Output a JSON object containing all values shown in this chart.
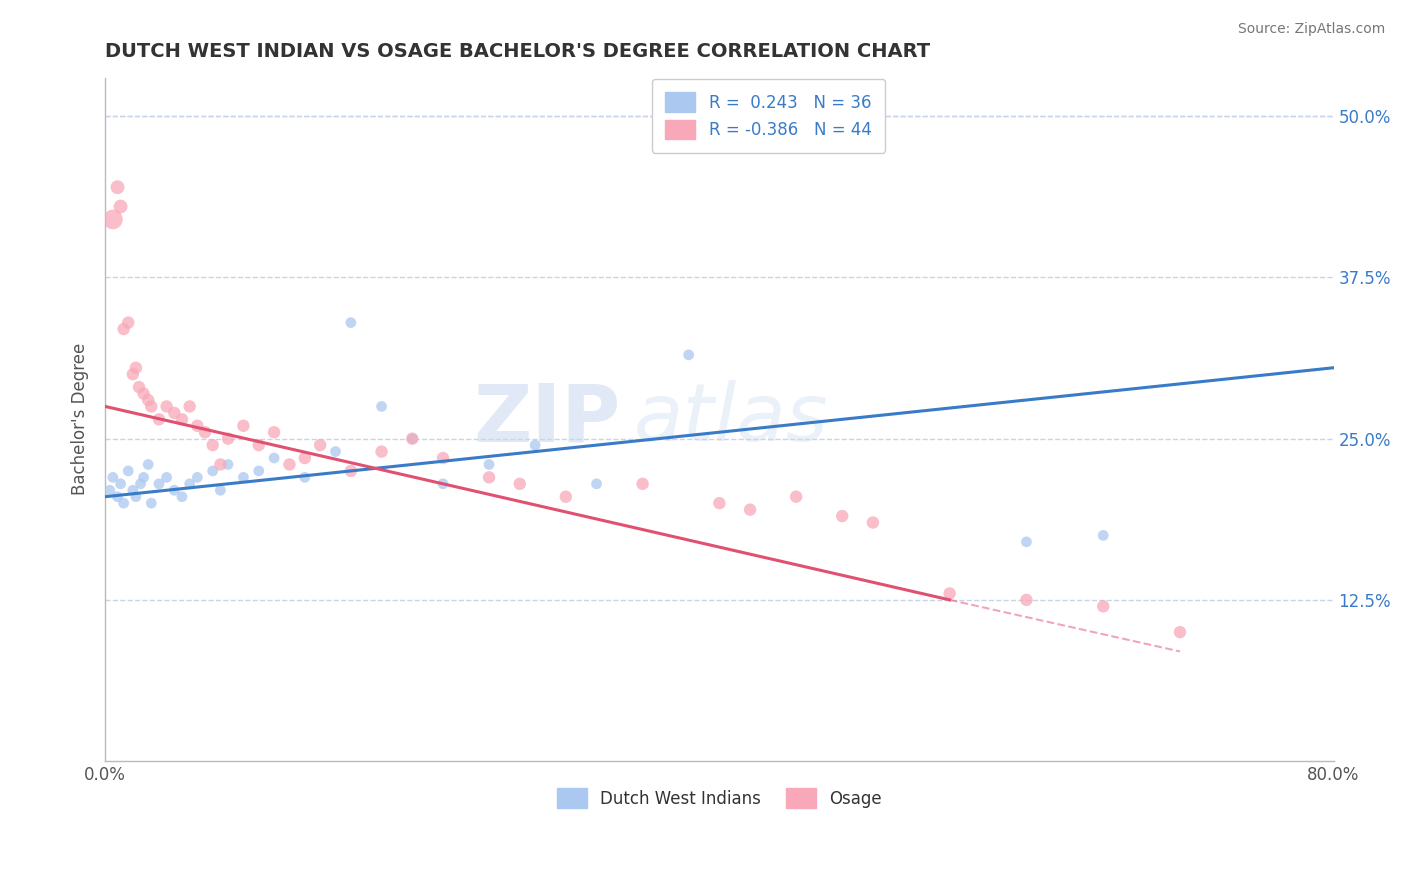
{
  "title": "DUTCH WEST INDIAN VS OSAGE BACHELOR'S DEGREE CORRELATION CHART",
  "source": "Source: ZipAtlas.com",
  "ylabel": "Bachelor's Degree",
  "x_min": 0.0,
  "x_max": 80.0,
  "y_min": 0.0,
  "y_max": 53.0,
  "legend_r_blue": "R =  0.243",
  "legend_n_blue": "N = 36",
  "legend_r_pink": "R = -0.386",
  "legend_n_pink": "N = 44",
  "blue_color": "#aac8f0",
  "pink_color": "#f8a8b8",
  "blue_line_color": "#3a7bc8",
  "pink_line_color": "#e05070",
  "watermark_zip": "ZIP",
  "watermark_atlas": "atlas",
  "background_color": "#ffffff",
  "grid_color": "#c8d4e8",
  "blue_line": {
    "x0": 0.0,
    "y0": 20.5,
    "x1": 80.0,
    "y1": 30.5
  },
  "pink_line": {
    "x0": 0.0,
    "y0": 27.5,
    "x1": 55.0,
    "y1": 12.5
  },
  "pink_line_dash": {
    "x0": 55.0,
    "y0": 12.5,
    "x1": 70.0,
    "y1": 8.5
  },
  "blue_scatter_x": [
    0.3,
    0.5,
    0.8,
    1.0,
    1.2,
    1.5,
    1.8,
    2.0,
    2.3,
    2.5,
    2.8,
    3.0,
    3.5,
    4.0,
    4.5,
    5.0,
    5.5,
    6.0,
    7.0,
    7.5,
    8.0,
    9.0,
    10.0,
    11.0,
    13.0,
    15.0,
    16.0,
    18.0,
    20.0,
    22.0,
    25.0,
    28.0,
    32.0,
    38.0,
    60.0,
    65.0
  ],
  "blue_scatter_y": [
    21.0,
    22.0,
    20.5,
    21.5,
    20.0,
    22.5,
    21.0,
    20.5,
    21.5,
    22.0,
    23.0,
    20.0,
    21.5,
    22.0,
    21.0,
    20.5,
    21.5,
    22.0,
    22.5,
    21.0,
    23.0,
    22.0,
    22.5,
    23.5,
    22.0,
    24.0,
    34.0,
    27.5,
    25.0,
    21.5,
    23.0,
    24.5,
    21.5,
    31.5,
    17.0,
    17.5
  ],
  "blue_scatter_s": [
    60,
    60,
    60,
    60,
    60,
    60,
    60,
    60,
    60,
    60,
    60,
    60,
    60,
    60,
    60,
    60,
    60,
    60,
    60,
    60,
    60,
    60,
    60,
    60,
    60,
    60,
    60,
    60,
    60,
    60,
    60,
    60,
    60,
    60,
    60,
    60
  ],
  "pink_scatter_x": [
    0.5,
    0.8,
    1.0,
    1.2,
    1.5,
    1.8,
    2.0,
    2.2,
    2.5,
    2.8,
    3.0,
    3.5,
    4.0,
    4.5,
    5.0,
    5.5,
    6.0,
    6.5,
    7.0,
    7.5,
    8.0,
    9.0,
    10.0,
    11.0,
    12.0,
    13.0,
    14.0,
    16.0,
    18.0,
    20.0,
    22.0,
    25.0,
    27.0,
    30.0,
    35.0,
    40.0,
    42.0,
    45.0,
    48.0,
    50.0,
    55.0,
    60.0,
    65.0,
    70.0
  ],
  "pink_scatter_y": [
    42.0,
    44.5,
    43.0,
    33.5,
    34.0,
    30.0,
    30.5,
    29.0,
    28.5,
    28.0,
    27.5,
    26.5,
    27.5,
    27.0,
    26.5,
    27.5,
    26.0,
    25.5,
    24.5,
    23.0,
    25.0,
    26.0,
    24.5,
    25.5,
    23.0,
    23.5,
    24.5,
    22.5,
    24.0,
    25.0,
    23.5,
    22.0,
    21.5,
    20.5,
    21.5,
    20.0,
    19.5,
    20.5,
    19.0,
    18.5,
    13.0,
    12.5,
    12.0,
    10.0
  ],
  "pink_scatter_s": [
    200,
    100,
    100,
    80,
    80,
    80,
    80,
    80,
    80,
    80,
    80,
    80,
    80,
    80,
    80,
    80,
    80,
    80,
    80,
    80,
    80,
    80,
    80,
    80,
    80,
    80,
    80,
    80,
    80,
    80,
    80,
    80,
    80,
    80,
    80,
    80,
    80,
    80,
    80,
    80,
    80,
    80,
    80,
    80
  ]
}
